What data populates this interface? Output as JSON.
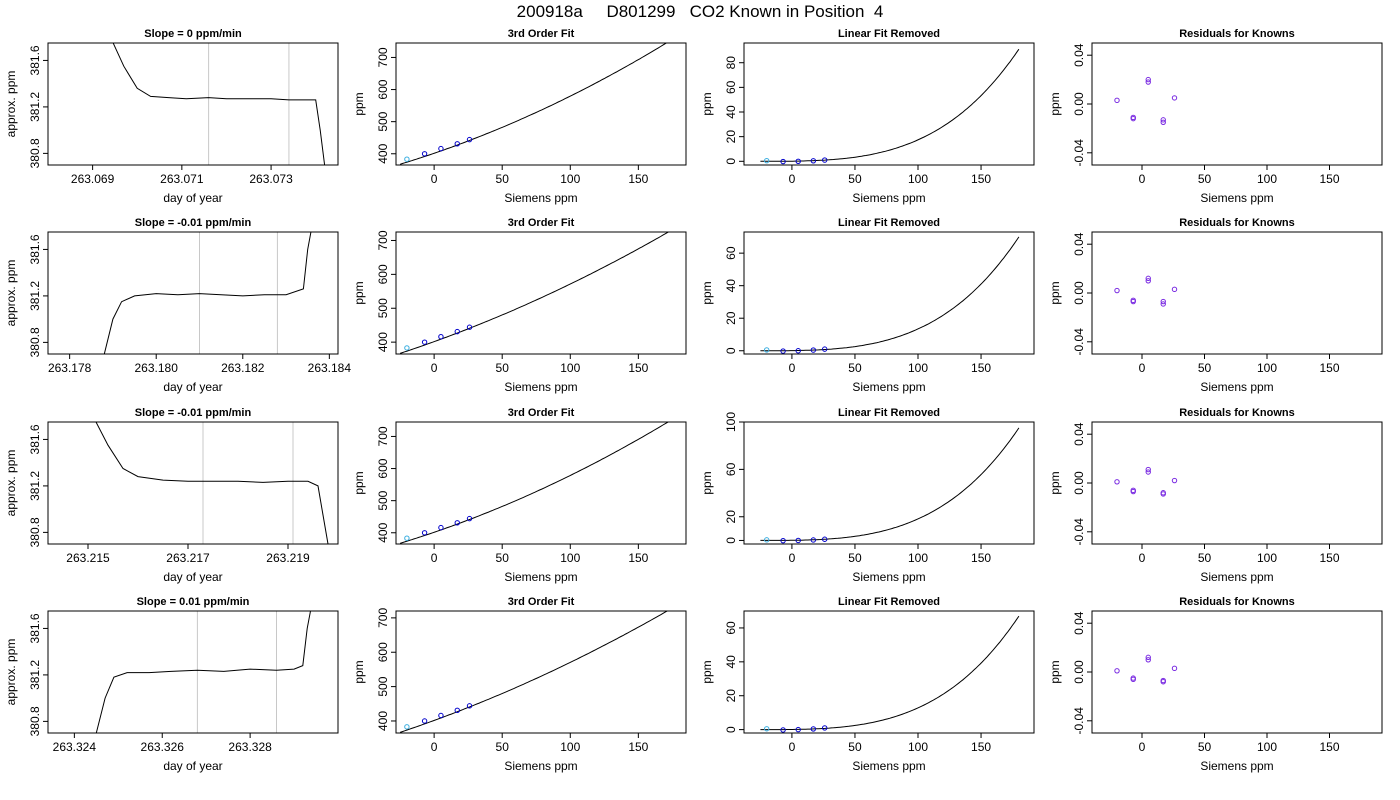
{
  "figure": {
    "title": "200918a     D801299   CO2 Known in Position  4"
  },
  "chart_data": [
    {
      "type": "line",
      "panel": "time-series",
      "row": 1,
      "title": "Slope =  0  ppm/min",
      "xlabel": "day of year",
      "ylabel": "approx. ppm",
      "xlim": [
        263.068,
        263.0745
      ],
      "ylim": [
        380.7,
        381.75
      ],
      "xticks": [
        263.069,
        263.071,
        263.073
      ],
      "xtick_decimals": 3,
      "yticks": [
        380.8,
        381.2,
        381.6
      ],
      "ytick_decimals": 1,
      "vlines": [
        263.0716,
        263.0734
      ],
      "series": [
        {
          "x": [
            263.0694,
            263.0697,
            263.07,
            263.0703,
            263.0707,
            263.0711,
            263.0716,
            263.072,
            263.0725,
            263.073,
            263.0734,
            263.0738,
            263.074,
            263.0741,
            263.0742
          ],
          "y": [
            381.8,
            381.55,
            381.36,
            381.29,
            381.28,
            381.27,
            381.28,
            381.27,
            381.27,
            381.27,
            381.26,
            381.26,
            381.26,
            381.0,
            380.7
          ]
        }
      ]
    },
    {
      "type": "line",
      "panel": "cubic-fit",
      "row": 1,
      "title": "3rd Order Fit",
      "xlabel": "Siemens ppm",
      "ylabel": "ppm",
      "xlim": [
        -28,
        185
      ],
      "ylim": [
        365,
        745
      ],
      "xticks": [
        0,
        50,
        100,
        150
      ],
      "xtick_decimals": 0,
      "yticks": [
        400,
        500,
        600,
        700
      ],
      "ytick_decimals": 0,
      "curve": {
        "x0": -25,
        "x1": 180,
        "coef": [
          401.5,
          1.45,
          0.0033,
          0.0
        ]
      },
      "points": {
        "x": [
          -20,
          -7,
          5,
          17,
          26
        ],
        "y": [
          383,
          400,
          416,
          431,
          444
        ]
      }
    },
    {
      "type": "line",
      "panel": "linear-removed",
      "row": 1,
      "title": "Linear Fit Removed",
      "xlabel": "Siemens ppm",
      "ylabel": "ppm",
      "xlim": [
        -38,
        192
      ],
      "ylim": [
        -3,
        96
      ],
      "xticks": [
        0,
        50,
        100,
        150
      ],
      "xtick_decimals": 0,
      "yticks": [
        0,
        20,
        40,
        60,
        80
      ],
      "ytick_decimals": 0,
      "curve": {
        "x0": -25,
        "x1": 180,
        "peak": 91
      },
      "points": {
        "x": [
          -20,
          -7,
          5,
          17,
          26
        ],
        "y": [
          0.5,
          -0.2,
          0,
          0.4,
          1.0
        ]
      }
    },
    {
      "type": "scatter",
      "panel": "residuals",
      "row": 1,
      "title": "Residuals for Knowns",
      "xlabel": "Siemens ppm",
      "ylabel": "ppm",
      "xlim": [
        -40,
        192
      ],
      "ylim": [
        -0.05,
        0.05
      ],
      "xticks": [
        0,
        50,
        100,
        150
      ],
      "xtick_decimals": 0,
      "yticks": [
        -0.04,
        0.0,
        0.04
      ],
      "ytick_decimals": 2,
      "points": {
        "x": [
          -20,
          -7,
          -7,
          5,
          5,
          17,
          17,
          26
        ],
        "y": [
          0.003,
          -0.011,
          -0.012,
          0.018,
          0.02,
          -0.013,
          -0.015,
          0.005
        ]
      }
    },
    {
      "type": "line",
      "panel": "time-series",
      "row": 2,
      "title": "Slope =  -0.01  ppm/min",
      "xlabel": "day of year",
      "ylabel": "approx. ppm",
      "xlim": [
        263.1775,
        263.1842
      ],
      "ylim": [
        380.7,
        381.75
      ],
      "xticks": [
        263.178,
        263.18,
        263.182,
        263.184
      ],
      "xtick_decimals": 3,
      "yticks": [
        380.8,
        381.2,
        381.6
      ],
      "ytick_decimals": 1,
      "vlines": [
        263.181,
        263.1828
      ],
      "series": [
        {
          "x": [
            263.1788,
            263.179,
            263.1792,
            263.1795,
            263.18,
            263.1805,
            263.181,
            263.1815,
            263.182,
            263.1825,
            263.183,
            263.1834,
            263.1835,
            263.1836
          ],
          "y": [
            380.7,
            381.0,
            381.15,
            381.2,
            381.22,
            381.21,
            381.22,
            381.21,
            381.2,
            381.21,
            381.21,
            381.26,
            381.6,
            381.8
          ]
        }
      ]
    },
    {
      "type": "line",
      "panel": "cubic-fit",
      "row": 2,
      "title": "3rd Order Fit",
      "xlabel": "Siemens ppm",
      "ylabel": "ppm",
      "xlim": [
        -28,
        185
      ],
      "ylim": [
        365,
        725
      ],
      "xticks": [
        0,
        50,
        100,
        150
      ],
      "xtick_decimals": 0,
      "yticks": [
        400,
        500,
        600,
        700
      ],
      "ytick_decimals": 0,
      "curve": {
        "x0": -25,
        "x1": 180,
        "coef": [
          401.5,
          1.45,
          0.0025,
          0.0
        ]
      },
      "points": {
        "x": [
          -20,
          -7,
          5,
          17,
          26
        ],
        "y": [
          383,
          400,
          416,
          431,
          444
        ]
      }
    },
    {
      "type": "line",
      "panel": "linear-removed",
      "row": 2,
      "title": "Linear Fit Removed",
      "xlabel": "Siemens ppm",
      "ylabel": "ppm",
      "xlim": [
        -38,
        192
      ],
      "ylim": [
        -2,
        73
      ],
      "xticks": [
        0,
        50,
        100,
        150
      ],
      "xtick_decimals": 0,
      "yticks": [
        0,
        20,
        40,
        60
      ],
      "ytick_decimals": 0,
      "curve": {
        "x0": -25,
        "x1": 180,
        "peak": 70
      },
      "points": {
        "x": [
          -20,
          -7,
          5,
          17,
          26
        ],
        "y": [
          0.5,
          -0.2,
          0,
          0.4,
          1.0
        ]
      }
    },
    {
      "type": "scatter",
      "panel": "residuals",
      "row": 2,
      "title": "Residuals for Knowns",
      "xlabel": "Siemens ppm",
      "ylabel": "ppm",
      "xlim": [
        -40,
        192
      ],
      "ylim": [
        -0.05,
        0.05
      ],
      "xticks": [
        0,
        50,
        100,
        150
      ],
      "xtick_decimals": 0,
      "yticks": [
        -0.04,
        0.0,
        0.04
      ],
      "ytick_decimals": 2,
      "points": {
        "x": [
          -20,
          -7,
          -7,
          5,
          5,
          17,
          17,
          26
        ],
        "y": [
          0.002,
          -0.006,
          -0.007,
          0.01,
          0.012,
          -0.007,
          -0.009,
          0.003
        ]
      }
    },
    {
      "type": "line",
      "panel": "time-series",
      "row": 3,
      "title": "Slope =  -0.01  ppm/min",
      "xlabel": "day of year",
      "ylabel": "approx. ppm",
      "xlim": [
        263.2142,
        263.22
      ],
      "ylim": [
        380.7,
        381.75
      ],
      "xticks": [
        263.215,
        263.217,
        263.219
      ],
      "xtick_decimals": 3,
      "yticks": [
        380.8,
        381.2,
        381.6
      ],
      "ytick_decimals": 1,
      "vlines": [
        263.2173,
        263.2191
      ],
      "series": [
        {
          "x": [
            263.2151,
            263.2154,
            263.2157,
            263.216,
            263.2165,
            263.217,
            263.2175,
            263.218,
            263.2185,
            263.219,
            263.2194,
            263.2196,
            263.2197,
            263.2198
          ],
          "y": [
            381.8,
            381.55,
            381.35,
            381.28,
            381.25,
            381.24,
            381.24,
            381.24,
            381.23,
            381.24,
            381.24,
            381.2,
            380.95,
            380.7
          ]
        }
      ]
    },
    {
      "type": "line",
      "panel": "cubic-fit",
      "row": 3,
      "title": "3rd Order Fit",
      "xlabel": "Siemens ppm",
      "ylabel": "ppm",
      "xlim": [
        -28,
        185
      ],
      "ylim": [
        365,
        745
      ],
      "xticks": [
        0,
        50,
        100,
        150
      ],
      "xtick_decimals": 0,
      "yticks": [
        400,
        500,
        600,
        700
      ],
      "ytick_decimals": 0,
      "curve": {
        "x0": -25,
        "x1": 180,
        "coef": [
          401.5,
          1.45,
          0.0032,
          0.0
        ]
      },
      "points": {
        "x": [
          -20,
          -7,
          5,
          17,
          26
        ],
        "y": [
          383,
          400,
          416,
          431,
          444
        ]
      }
    },
    {
      "type": "line",
      "panel": "linear-removed",
      "row": 3,
      "title": "Linear Fit Removed",
      "xlabel": "Siemens ppm",
      "ylabel": "ppm",
      "xlim": [
        -38,
        192
      ],
      "ylim": [
        -3,
        100
      ],
      "xticks": [
        0,
        50,
        100,
        150
      ],
      "xtick_decimals": 0,
      "yticks": [
        0,
        20,
        60,
        100
      ],
      "ytick_decimals": 0,
      "curve": {
        "x0": -25,
        "x1": 180,
        "peak": 95
      },
      "points": {
        "x": [
          -20,
          -7,
          5,
          17,
          26
        ],
        "y": [
          0.5,
          -0.2,
          0,
          0.4,
          1.0
        ]
      }
    },
    {
      "type": "scatter",
      "panel": "residuals",
      "row": 3,
      "title": "Residuals for Knowns",
      "xlabel": "Siemens ppm",
      "ylabel": "ppm",
      "xlim": [
        -40,
        192
      ],
      "ylim": [
        -0.05,
        0.05
      ],
      "xticks": [
        0,
        50,
        100,
        150
      ],
      "xtick_decimals": 0,
      "yticks": [
        -0.04,
        0.0,
        0.04
      ],
      "ytick_decimals": 2,
      "points": {
        "x": [
          -20,
          -7,
          -7,
          5,
          5,
          17,
          17,
          26
        ],
        "y": [
          0.001,
          -0.006,
          -0.007,
          0.009,
          0.011,
          -0.008,
          -0.009,
          0.002
        ]
      }
    },
    {
      "type": "line",
      "panel": "time-series",
      "row": 4,
      "title": "Slope =  0.01  ppm/min",
      "xlabel": "day of year",
      "ylabel": "approx. ppm",
      "xlim": [
        263.3234,
        263.33
      ],
      "ylim": [
        380.7,
        381.75
      ],
      "xticks": [
        263.324,
        263.326,
        263.328
      ],
      "xtick_decimals": 3,
      "yticks": [
        380.8,
        381.2,
        381.6
      ],
      "ytick_decimals": 1,
      "vlines": [
        263.3268,
        263.3286
      ],
      "series": [
        {
          "x": [
            263.3245,
            263.3247,
            263.3249,
            263.3252,
            263.3257,
            263.3262,
            263.3268,
            263.3274,
            263.328,
            263.3286,
            263.329,
            263.3292,
            263.3293,
            263.3294
          ],
          "y": [
            380.7,
            381.0,
            381.18,
            381.22,
            381.22,
            381.23,
            381.24,
            381.23,
            381.25,
            381.24,
            381.25,
            381.28,
            381.6,
            381.8
          ]
        }
      ]
    },
    {
      "type": "line",
      "panel": "cubic-fit",
      "row": 4,
      "title": "3rd Order Fit",
      "xlabel": "Siemens ppm",
      "ylabel": "ppm",
      "xlim": [
        -28,
        185
      ],
      "ylim": [
        365,
        720
      ],
      "xticks": [
        0,
        50,
        100,
        150
      ],
      "xtick_decimals": 0,
      "yticks": [
        400,
        500,
        600,
        700
      ],
      "ytick_decimals": 0,
      "curve": {
        "x0": -25,
        "x1": 180,
        "coef": [
          401.5,
          1.45,
          0.0024,
          0.0
        ]
      },
      "points": {
        "x": [
          -20,
          -7,
          5,
          17,
          26
        ],
        "y": [
          383,
          400,
          416,
          431,
          444
        ]
      }
    },
    {
      "type": "line",
      "panel": "linear-removed",
      "row": 4,
      "title": "Linear Fit Removed",
      "xlabel": "Siemens ppm",
      "ylabel": "ppm",
      "xlim": [
        -38,
        192
      ],
      "ylim": [
        -2,
        70
      ],
      "xticks": [
        0,
        50,
        100,
        150
      ],
      "xtick_decimals": 0,
      "yticks": [
        0,
        20,
        40,
        60
      ],
      "ytick_decimals": 0,
      "curve": {
        "x0": -25,
        "x1": 180,
        "peak": 67
      },
      "points": {
        "x": [
          -20,
          -7,
          5,
          17,
          26
        ],
        "y": [
          0.5,
          -0.2,
          0,
          0.4,
          1.0
        ]
      }
    },
    {
      "type": "scatter",
      "panel": "residuals",
      "row": 4,
      "title": "Residuals for Knowns",
      "xlabel": "Siemens ppm",
      "ylabel": "ppm",
      "xlim": [
        -40,
        192
      ],
      "ylim": [
        -0.05,
        0.05
      ],
      "xticks": [
        0,
        50,
        100,
        150
      ],
      "xtick_decimals": 0,
      "yticks": [
        -0.04,
        0.0,
        0.04
      ],
      "ytick_decimals": 2,
      "points": {
        "x": [
          -20,
          -7,
          -7,
          5,
          5,
          17,
          17,
          26
        ],
        "y": [
          0.001,
          -0.005,
          -0.006,
          0.01,
          0.012,
          -0.007,
          -0.008,
          0.003
        ]
      }
    }
  ],
  "colors": {
    "line": "#000000",
    "vline": "#c8c8c8",
    "point_fit": "#0000cc",
    "point_first": "#3aaee0",
    "point_residual": "#7a2be2",
    "point_residual_fill": "#ff4dff"
  }
}
